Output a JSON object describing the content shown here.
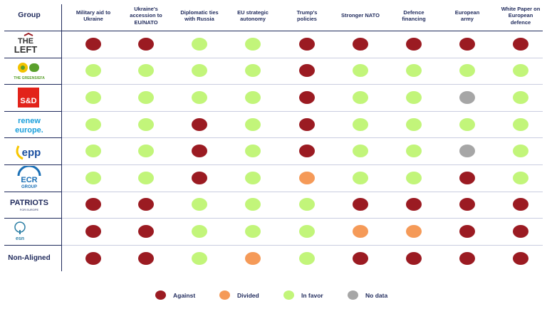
{
  "legend": {
    "against": "Against",
    "divided": "Divided",
    "in_favor": "In favor",
    "no_data": "No data"
  },
  "colors": {
    "against": "#9b1b22",
    "divided": "#f59a58",
    "in_favor": "#c2f57a",
    "no_data": "#a6a6a6",
    "navy": "#1f2a5c"
  },
  "chart_data": {
    "type": "table",
    "row_header": "Group",
    "columns": [
      "Military aid to\nUkraine",
      "Ukraine's\naccession to\nEU/NATO",
      "Diplomatic ties\nwith Russia",
      "EU strategic\nautonomy",
      "Trump's\npolicies",
      "Stronger NATO",
      "Defence\nfinancing",
      "European\narmy",
      "White Paper on\nEuropean\ndefence"
    ],
    "rows": [
      {
        "group": "THE LEFT",
        "logo": "the-left-logo",
        "logo_text": [
          "THE",
          "LEFT"
        ],
        "values": [
          "against",
          "against",
          "in_favor",
          "in_favor",
          "against",
          "against",
          "against",
          "against",
          "against"
        ]
      },
      {
        "group": "THE GREENS/EFA",
        "logo": "greens-efa-logo",
        "logo_text": [
          "THE GREENS/EFA"
        ],
        "values": [
          "in_favor",
          "in_favor",
          "in_favor",
          "in_favor",
          "against",
          "in_favor",
          "in_favor",
          "in_favor",
          "in_favor"
        ]
      },
      {
        "group": "S&D",
        "logo": "snd-logo",
        "logo_text": [
          "S&D"
        ],
        "values": [
          "in_favor",
          "in_favor",
          "in_favor",
          "in_favor",
          "against",
          "in_favor",
          "in_favor",
          "no_data",
          "in_favor"
        ]
      },
      {
        "group": "renew europe.",
        "logo": "renew-europe-logo",
        "logo_text": [
          "renew",
          "europe."
        ],
        "values": [
          "in_favor",
          "in_favor",
          "against",
          "in_favor",
          "against",
          "in_favor",
          "in_favor",
          "in_favor",
          "in_favor"
        ]
      },
      {
        "group": "epp",
        "logo": "epp-logo",
        "logo_text": [
          "epp"
        ],
        "values": [
          "in_favor",
          "in_favor",
          "against",
          "in_favor",
          "against",
          "in_favor",
          "in_favor",
          "no_data",
          "in_favor"
        ]
      },
      {
        "group": "ECR GROUP",
        "logo": "ecr-logo",
        "logo_text": [
          "ECR",
          "GROUP"
        ],
        "values": [
          "in_favor",
          "in_favor",
          "against",
          "in_favor",
          "divided",
          "in_favor",
          "in_favor",
          "against",
          "in_favor"
        ]
      },
      {
        "group": "PATRIOTS FOR EUROPE",
        "logo": "patriots-logo",
        "logo_text": [
          "PATRIOTS",
          "FOR EUROPE"
        ],
        "values": [
          "against",
          "against",
          "in_favor",
          "in_favor",
          "in_favor",
          "against",
          "against",
          "against",
          "against"
        ]
      },
      {
        "group": "ESN",
        "logo": "esn-logo",
        "logo_text": [
          "esn"
        ],
        "values": [
          "against",
          "against",
          "in_favor",
          "in_favor",
          "in_favor",
          "divided",
          "divided",
          "against",
          "against"
        ]
      },
      {
        "group": "Non-Aligned",
        "logo": "",
        "logo_text": [
          "Non-Aligned"
        ],
        "values": [
          "against",
          "against",
          "in_favor",
          "divided",
          "in_favor",
          "against",
          "against",
          "against",
          "against"
        ]
      }
    ]
  }
}
